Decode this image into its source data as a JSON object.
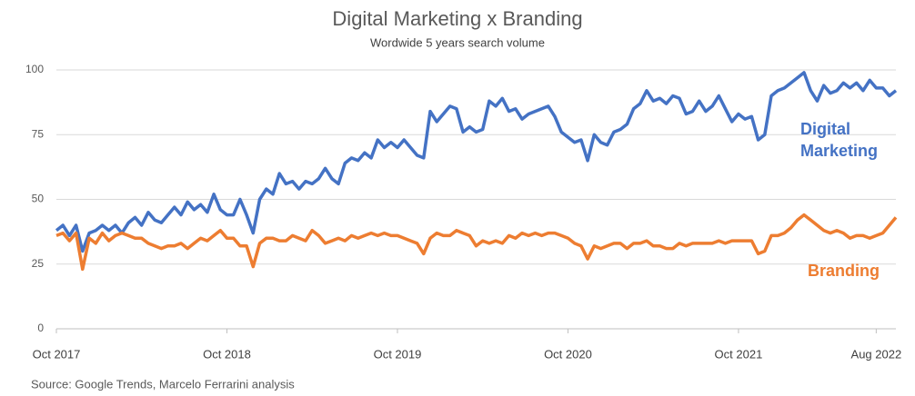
{
  "chart_data": {
    "type": "line",
    "title": "Digital Marketing x Branding",
    "subtitle": "Wordwide 5 years search volume",
    "source": "Source: Google Trends, Marcelo Ferrarini analysis",
    "categories": [
      "Oct 2017",
      null,
      null,
      null,
      null,
      null,
      null,
      null,
      null,
      null,
      null,
      null,
      null,
      null,
      null,
      null,
      null,
      null,
      null,
      null,
      null,
      null,
      null,
      null,
      null,
      null,
      "Oct 2018",
      null,
      null,
      null,
      null,
      null,
      null,
      null,
      null,
      null,
      null,
      null,
      null,
      null,
      null,
      null,
      null,
      null,
      null,
      null,
      null,
      null,
      null,
      null,
      null,
      null,
      "Oct 2019",
      null,
      null,
      null,
      null,
      null,
      null,
      null,
      null,
      null,
      null,
      null,
      null,
      null,
      null,
      null,
      null,
      null,
      null,
      null,
      null,
      null,
      null,
      null,
      null,
      null,
      "Oct 2020",
      null,
      null,
      null,
      null,
      null,
      null,
      null,
      null,
      null,
      null,
      null,
      null,
      null,
      null,
      null,
      null,
      null,
      null,
      null,
      null,
      null,
      null,
      null,
      null,
      null,
      "Oct 2021",
      null,
      null,
      null,
      null,
      null,
      null,
      null,
      null,
      null,
      null,
      null,
      null,
      null,
      null,
      null,
      null,
      null,
      null,
      null,
      null,
      "Aug 2022",
      null,
      null,
      null
    ],
    "series": [
      {
        "name": "Digital Marketing",
        "color": "#4472c4",
        "values": [
          38,
          40,
          36,
          40,
          30,
          37,
          38,
          40,
          38,
          40,
          37,
          41,
          43,
          40,
          45,
          42,
          41,
          44,
          47,
          44,
          49,
          46,
          48,
          45,
          52,
          46,
          44,
          44,
          50,
          44,
          37,
          50,
          54,
          52,
          60,
          56,
          57,
          54,
          57,
          56,
          58,
          62,
          58,
          56,
          64,
          66,
          65,
          68,
          66,
          73,
          70,
          72,
          70,
          73,
          70,
          67,
          66,
          84,
          80,
          83,
          86,
          85,
          76,
          78,
          76,
          77,
          88,
          86,
          89,
          84,
          85,
          81,
          83,
          84,
          85,
          86,
          82,
          76,
          74,
          72,
          73,
          65,
          75,
          72,
          71,
          76,
          77,
          79,
          85,
          87,
          92,
          88,
          89,
          87,
          90,
          89,
          83,
          84,
          88,
          84,
          86,
          90,
          85,
          80,
          83,
          81,
          82,
          73,
          75,
          90,
          92,
          93,
          95,
          97,
          99,
          92,
          88,
          94,
          91,
          92,
          95,
          93,
          95,
          92,
          96,
          93,
          93,
          90,
          92
        ]
      },
      {
        "name": "Branding",
        "color": "#ed7d31",
        "values": [
          36,
          37,
          34,
          37,
          23,
          35,
          33,
          37,
          34,
          36,
          37,
          36,
          35,
          35,
          33,
          32,
          31,
          32,
          32,
          33,
          31,
          33,
          35,
          34,
          36,
          38,
          35,
          35,
          32,
          32,
          24,
          33,
          35,
          35,
          34,
          34,
          36,
          35,
          34,
          38,
          36,
          33,
          34,
          35,
          34,
          36,
          35,
          36,
          37,
          36,
          37,
          36,
          36,
          35,
          34,
          33,
          29,
          35,
          37,
          36,
          36,
          38,
          37,
          36,
          32,
          34,
          33,
          34,
          33,
          36,
          35,
          37,
          36,
          37,
          36,
          37,
          37,
          36,
          35,
          33,
          32,
          27,
          32,
          31,
          32,
          33,
          33,
          31,
          33,
          33,
          34,
          32,
          32,
          31,
          31,
          33,
          32,
          33,
          33,
          33,
          33,
          34,
          33,
          34,
          34,
          34,
          34,
          29,
          30,
          36,
          36,
          37,
          39,
          42,
          44,
          42,
          40,
          38,
          37,
          38,
          37,
          35,
          36,
          36,
          35,
          36,
          37,
          40,
          43
        ]
      }
    ],
    "ylim": [
      0,
      100
    ],
    "yticks": [
      0,
      25,
      50,
      75,
      100
    ],
    "grid": true
  }
}
